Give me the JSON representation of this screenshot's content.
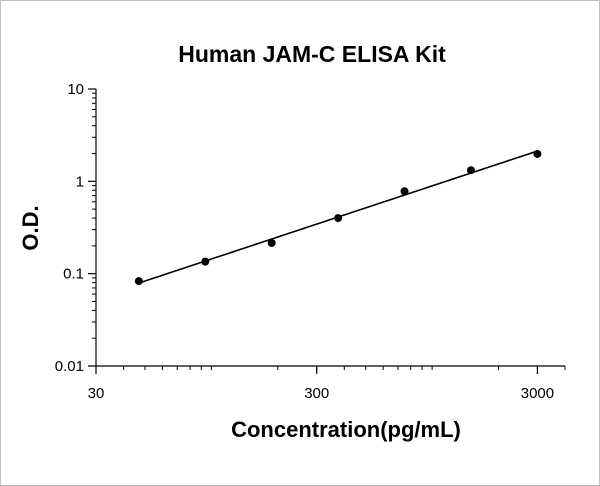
{
  "chart_data": {
    "type": "line",
    "title": "Human JAM-C ELISA Kit",
    "xlabel": "Concentration(pg/mL)",
    "ylabel": "O.D.",
    "x_scale": "log",
    "y_scale": "log",
    "xlim": [
      30,
      4000
    ],
    "ylim": [
      0.01,
      10
    ],
    "x_ticks": [
      {
        "value": 30,
        "label": "30"
      },
      {
        "value": 300,
        "label": "300"
      },
      {
        "value": 3000,
        "label": "3000"
      }
    ],
    "y_ticks": [
      {
        "value": 10,
        "label": "10"
      },
      {
        "value": 1,
        "label": "1"
      },
      {
        "value": 0.1,
        "label": "0.1"
      },
      {
        "value": 0.01,
        "label": "0.01"
      }
    ],
    "grid": false,
    "legend": "none",
    "series": [
      {
        "color": "#000000",
        "x": [
          46.9,
          93.8,
          187.5,
          375,
          750,
          1500,
          3000
        ],
        "y": [
          0.083,
          0.135,
          0.215,
          0.4,
          0.78,
          1.32,
          1.98
        ]
      }
    ]
  }
}
